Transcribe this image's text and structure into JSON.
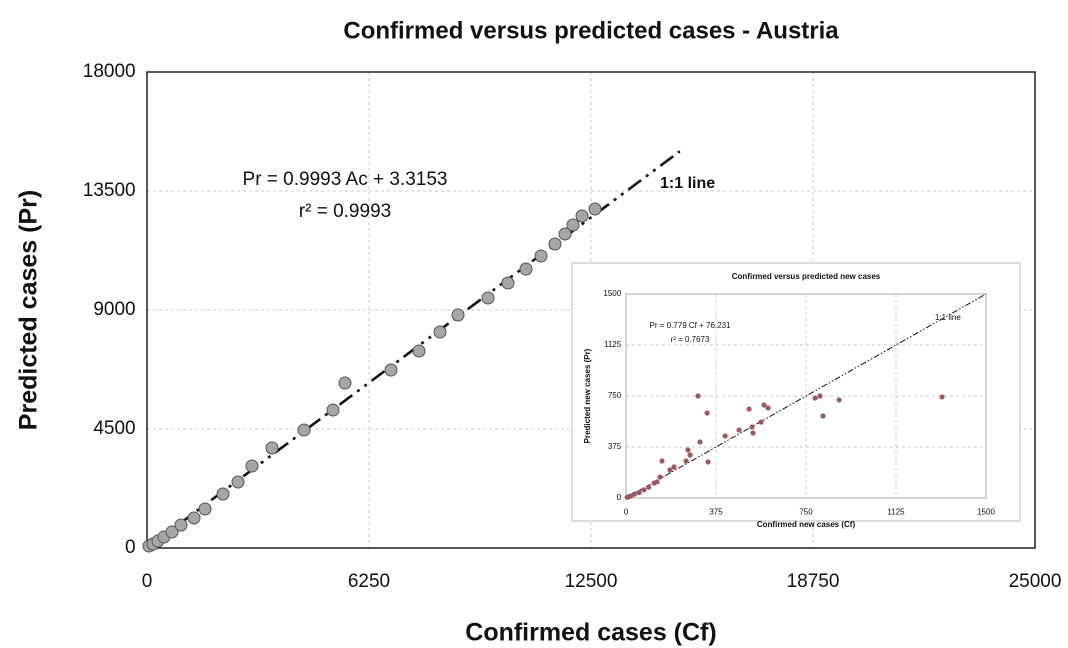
{
  "chart_data": [
    {
      "type": "scatter",
      "title": "Confirmed versus predicted cases - Austria",
      "x_label": "Confirmed cases (Cf)",
      "y_label": "Predicted cases (Pr)",
      "x": [
        56,
        169,
        310,
        479,
        704,
        957,
        1323,
        1633,
        2140,
        2562,
        2956,
        3519,
        4420,
        5236,
        5574,
        6869,
        7658,
        8249,
        8756,
        9600,
        10163,
        10670,
        11093,
        11486,
        11768,
        11993,
        12247,
        12613
      ],
      "values": [
        76,
        151,
        265,
        416,
        605,
        870,
        1134,
        1475,
        2042,
        2496,
        3101,
        3782,
        4462,
        5219,
        6240,
        6731,
        7450,
        8168,
        8811,
        9454,
        10021,
        10551,
        11042,
        11496,
        11874,
        12214,
        12555,
        12819
      ],
      "color": "#a6a6a6",
      "xlim": [
        0,
        25000
      ],
      "ylim": [
        0,
        18000
      ],
      "xticks": [
        0,
        6250,
        12500,
        18750,
        25000
      ],
      "yticks": [
        0,
        4500,
        9000,
        13500,
        18000
      ],
      "grid": true,
      "reference_line": {
        "label": "1:1 line",
        "x": [
          0,
          15000
        ],
        "values": [
          0,
          15000
        ]
      },
      "annotations": [
        "Pr = 0.9993 Ac + 3.3153",
        "r² = 0.9993"
      ]
    },
    {
      "type": "scatter",
      "title": "Confirmed versus predicted new cases",
      "x_label": "Confirmed new cases (Cf)",
      "y_label": "Predicted  new cases (Pr)",
      "x": [
        5,
        10,
        20,
        35,
        55,
        75,
        95,
        117,
        129,
        142,
        150,
        183,
        200,
        250,
        258,
        267,
        300,
        308,
        338,
        342,
        413,
        471,
        513,
        525,
        529,
        563,
        575,
        592,
        788,
        808,
        821,
        888,
        1317
      ],
      "values": [
        5,
        8,
        15,
        28,
        40,
        60,
        80,
        110,
        118,
        154,
        272,
        206,
        228,
        272,
        353,
        316,
        750,
        412,
        625,
        265,
        456,
        500,
        654,
        522,
        478,
        559,
        684,
        662,
        735,
        750,
        603,
        721,
        743
      ],
      "color": "#9b5a5a",
      "xlim": [
        0,
        1500
      ],
      "ylim": [
        0,
        1500
      ],
      "xticks": [
        0,
        375,
        750,
        1125,
        1500
      ],
      "yticks": [
        0,
        375,
        750,
        1125,
        1500
      ],
      "grid": true,
      "reference_line": {
        "label": "1:1 line",
        "x": [
          0,
          1500
        ],
        "values": [
          0,
          1500
        ]
      },
      "annotations": [
        "Pr = 0.779 Cf + 76.231",
        "r² = 0.7673"
      ]
    }
  ]
}
